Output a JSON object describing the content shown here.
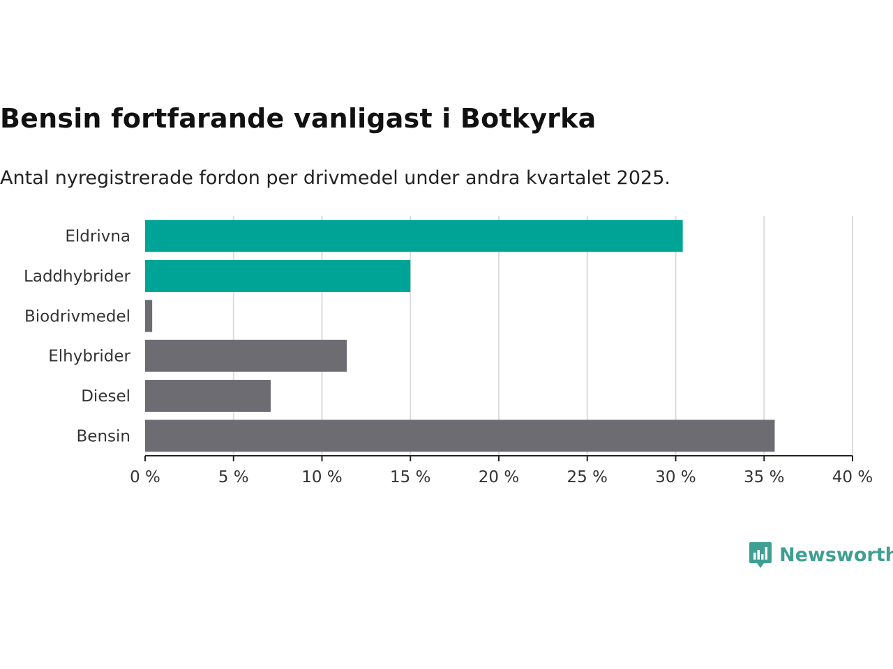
{
  "header": {
    "title": "Bensin fortfarande vanligast i Botkyrka",
    "subtitle": "Antal nyregistrerade fordon per drivmedel under andra kvartalet 2025."
  },
  "brand": {
    "name": "Newsworthy",
    "icon": "newsworthy-logo-icon",
    "color": "#3f9f93"
  },
  "colors": {
    "highlight": "#00a497",
    "base": "#6d6c73",
    "grid": "#dddddd",
    "axis": "#222222"
  },
  "chart_data": {
    "type": "bar",
    "orientation": "horizontal",
    "categories": [
      "Eldrivna",
      "Laddhybrider",
      "Biodrivmedel",
      "Elhybrider",
      "Diesel",
      "Bensin"
    ],
    "values": [
      30.4,
      15.0,
      0.4,
      11.4,
      7.1,
      35.6
    ],
    "highlighted": [
      true,
      true,
      false,
      false,
      false,
      false
    ],
    "unit": "%",
    "xlim": [
      0,
      40
    ],
    "xticks": [
      0,
      5,
      10,
      15,
      20,
      25,
      30,
      35,
      40
    ],
    "xtick_labels": [
      "0 %",
      "5 %",
      "10 %",
      "15 %",
      "20 %",
      "25 %",
      "30 %",
      "35 %",
      "40 %"
    ],
    "grid": true,
    "legend": "none"
  }
}
